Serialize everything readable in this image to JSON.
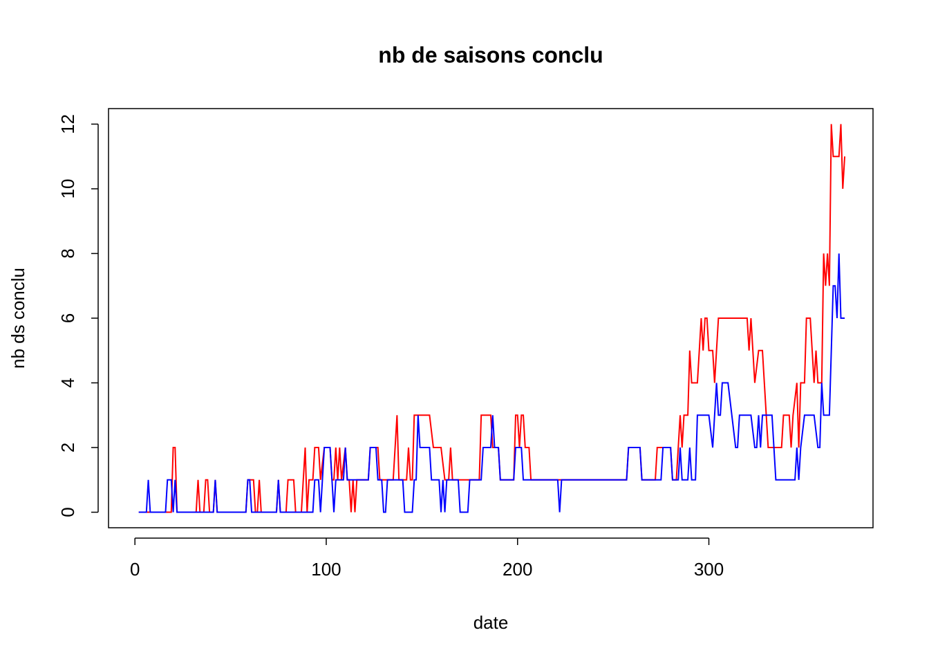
{
  "chart_data": {
    "type": "line",
    "title": "nb de saisons conclu",
    "x_label": "date",
    "y_label": "nb ds conclu",
    "xlim": [
      -13.8,
      385.8
    ],
    "ylim": [
      -0.48,
      12.48
    ],
    "xticks": [
      0,
      100,
      200,
      300
    ],
    "yticks": [
      0,
      2,
      4,
      6,
      8,
      10,
      12
    ],
    "series": [
      {
        "color": "#ff0000",
        "x": [
          2,
          19,
          20,
          21,
          22,
          32,
          33,
          34,
          36,
          37,
          38,
          39,
          41,
          42,
          43,
          58,
          59,
          62,
          63,
          64,
          65,
          66,
          74,
          75,
          76,
          79,
          80,
          83,
          84,
          87,
          88,
          89,
          90,
          91,
          93,
          94,
          96,
          97,
          99,
          102,
          103,
          104,
          105,
          106,
          107,
          108,
          110,
          111,
          112,
          113,
          114,
          115,
          116,
          122,
          123,
          127,
          128,
          135,
          136,
          137,
          138,
          142,
          143,
          144,
          145,
          146,
          154,
          156,
          160,
          162,
          164,
          165,
          166,
          180,
          181,
          186,
          187,
          190,
          191,
          198,
          199,
          200,
          201,
          202,
          203,
          204,
          206,
          207,
          257,
          258,
          264,
          265,
          272,
          273,
          280,
          281,
          283,
          284,
          285,
          286,
          287,
          289,
          290,
          291,
          294,
          295,
          296,
          297,
          298,
          299,
          300,
          302,
          303,
          305,
          320,
          321,
          322,
          323,
          324,
          326,
          328,
          329,
          330,
          331,
          338,
          339,
          342,
          343,
          344,
          346,
          347,
          348,
          350,
          351,
          353,
          354,
          355,
          356,
          357,
          359,
          360,
          361,
          362,
          363,
          364,
          365,
          368,
          369,
          370,
          371
        ],
        "values": [
          0,
          0,
          2,
          2,
          0,
          0,
          1,
          0,
          0,
          1,
          1,
          0,
          0,
          1,
          0,
          0,
          1,
          1,
          0,
          0,
          1,
          0,
          0,
          1,
          0,
          0,
          1,
          1,
          0,
          0,
          1,
          2,
          0,
          1,
          1,
          2,
          2,
          1,
          2,
          2,
          1,
          1,
          2,
          1,
          2,
          1,
          2,
          1,
          1,
          0,
          1,
          0,
          1,
          1,
          2,
          2,
          1,
          1,
          2,
          3,
          1,
          1,
          2,
          1,
          1,
          3,
          3,
          2,
          2,
          1,
          1,
          2,
          1,
          1,
          3,
          3,
          2,
          2,
          1,
          1,
          3,
          3,
          2,
          3,
          3,
          2,
          2,
          1,
          1,
          2,
          2,
          1,
          1,
          2,
          2,
          1,
          1,
          2,
          3,
          2,
          3,
          3,
          5,
          4,
          4,
          5,
          6,
          5,
          6,
          6,
          5,
          5,
          4,
          6,
          6,
          5,
          6,
          5,
          4,
          5,
          5,
          4,
          3,
          2,
          2,
          3,
          3,
          2,
          3,
          4,
          2,
          4,
          4,
          6,
          6,
          5,
          4,
          5,
          4,
          4,
          8,
          7,
          8,
          7,
          12,
          11,
          11,
          12,
          10,
          11
        ]
      },
      {
        "color": "#0000ff",
        "x": [
          2,
          6,
          7,
          8,
          16,
          17,
          19,
          20,
          21,
          22,
          41,
          42,
          43,
          58,
          59,
          60,
          61,
          74,
          75,
          76,
          93,
          94,
          96,
          97,
          98,
          99,
          102,
          103,
          104,
          105,
          109,
          110,
          111,
          122,
          123,
          126,
          127,
          129,
          130,
          131,
          132,
          140,
          141,
          145,
          146,
          147,
          148,
          149,
          154,
          155,
          159,
          160,
          161,
          162,
          163,
          169,
          170,
          174,
          175,
          181,
          182,
          186,
          187,
          188,
          190,
          191,
          198,
          199,
          202,
          203,
          221,
          222,
          223,
          257,
          258,
          264,
          265,
          275,
          276,
          280,
          281,
          284,
          285,
          286,
          289,
          290,
          291,
          293,
          294,
          300,
          302,
          304,
          305,
          306,
          307,
          310,
          312,
          314,
          315,
          316,
          322,
          324,
          325,
          326,
          327,
          328,
          333,
          335,
          345,
          346,
          347,
          348,
          350,
          355,
          357,
          358,
          359,
          360,
          363,
          365,
          366,
          367,
          368,
          369,
          371
        ],
        "values": [
          0,
          0,
          1,
          0,
          0,
          1,
          1,
          0,
          1,
          0,
          0,
          1,
          0,
          0,
          1,
          1,
          0,
          0,
          1,
          0,
          0,
          1,
          1,
          0,
          1,
          2,
          2,
          1,
          0,
          1,
          1,
          2,
          1,
          1,
          2,
          2,
          1,
          1,
          0,
          0,
          1,
          1,
          0,
          0,
          1,
          1,
          3,
          2,
          2,
          1,
          1,
          0,
          1,
          0,
          1,
          1,
          0,
          0,
          1,
          1,
          2,
          2,
          3,
          2,
          2,
          1,
          1,
          2,
          2,
          1,
          1,
          0,
          1,
          1,
          2,
          2,
          1,
          1,
          2,
          2,
          1,
          1,
          2,
          1,
          1,
          2,
          1,
          1,
          3,
          3,
          2,
          4,
          3,
          3,
          4,
          4,
          3,
          2,
          2,
          3,
          3,
          2,
          2,
          3,
          2,
          3,
          3,
          1,
          1,
          2,
          1,
          2,
          3,
          3,
          2,
          2,
          4,
          3,
          3,
          7,
          7,
          6,
          8,
          6,
          6
        ]
      }
    ]
  }
}
